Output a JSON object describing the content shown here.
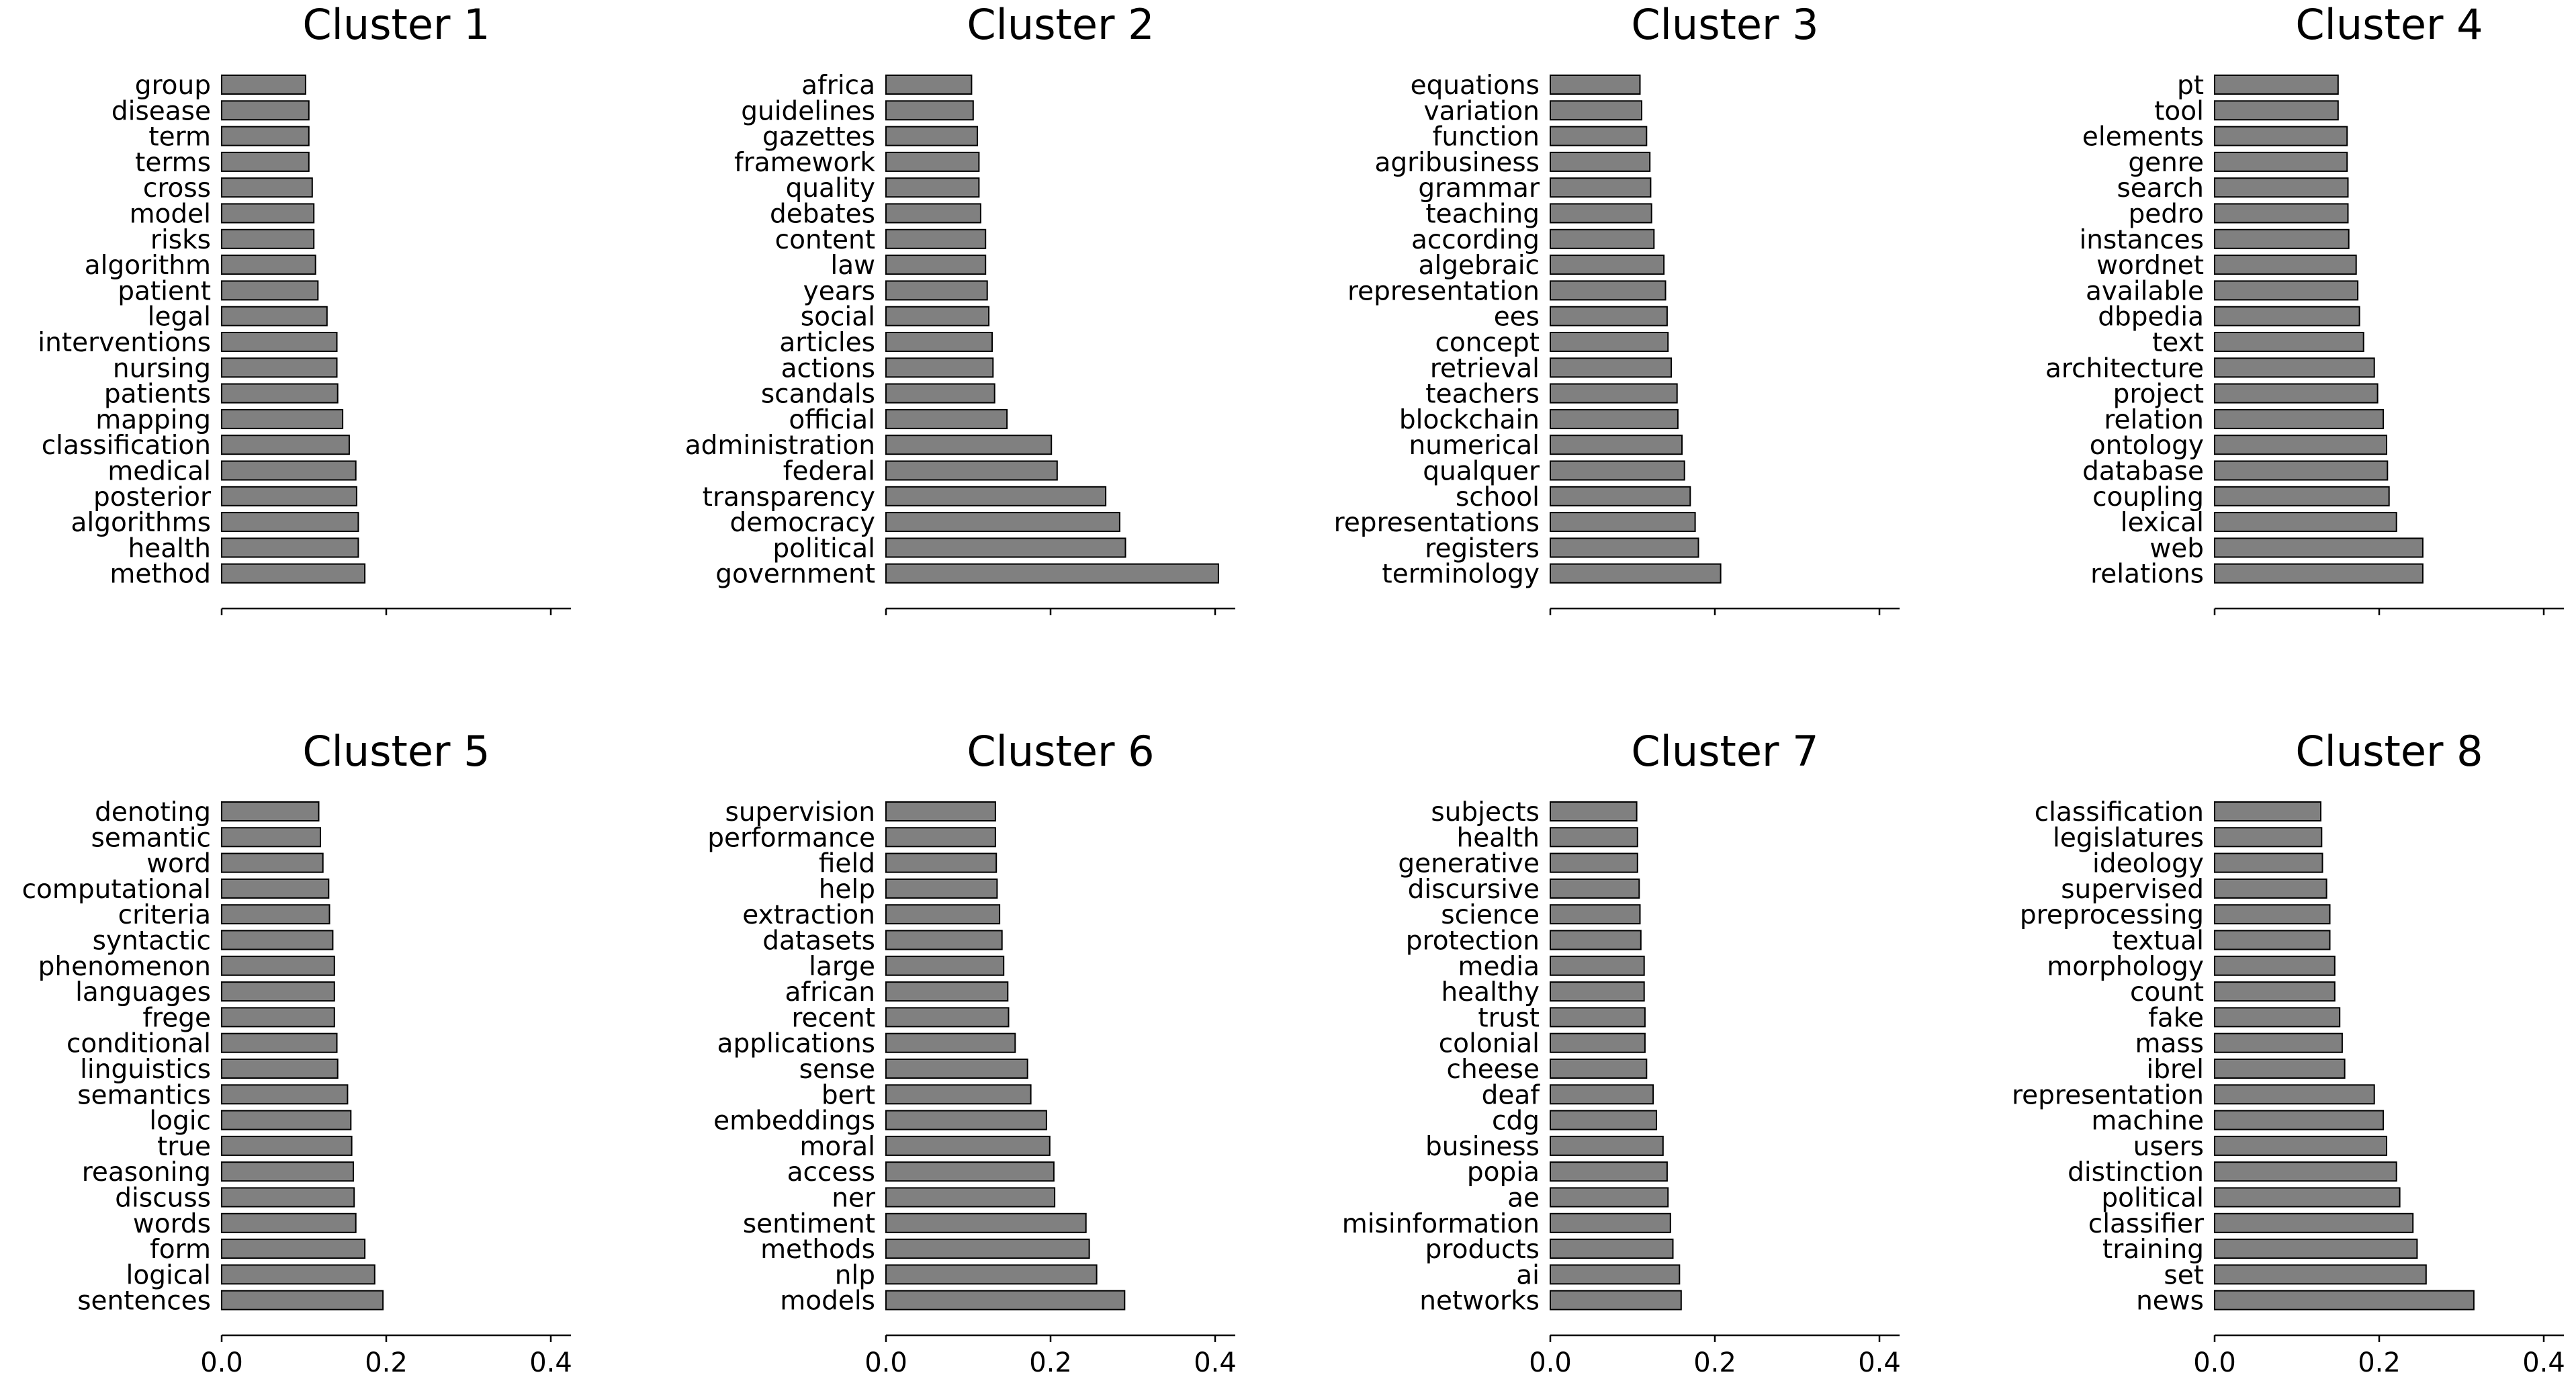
{
  "chart_data": [
    {
      "type": "bar",
      "orientation": "horizontal",
      "title": "Cluster 1",
      "categories": [
        "group",
        "disease",
        "term",
        "terms",
        "cross",
        "model",
        "risks",
        "algorithm",
        "patient",
        "legal",
        "interventions",
        "nursing",
        "patients",
        "mapping",
        "classification",
        "medical",
        "posterior",
        "algorithms",
        "health",
        "method"
      ],
      "values": [
        0.102,
        0.106,
        0.106,
        0.106,
        0.11,
        0.112,
        0.112,
        0.114,
        0.117,
        0.128,
        0.14,
        0.14,
        0.141,
        0.147,
        0.155,
        0.163,
        0.164,
        0.166,
        0.166,
        0.174
      ],
      "xlim": [
        0,
        0.42
      ],
      "xticks": [
        0.0,
        0.2,
        0.4
      ],
      "xtick_labels": [
        "",
        "",
        ""
      ],
      "bar_color": "#808080",
      "bar_edge_color": "#000000"
    },
    {
      "type": "bar",
      "orientation": "horizontal",
      "title": "Cluster 2",
      "categories": [
        "africa",
        "guidelines",
        "gazettes",
        "framework",
        "quality",
        "debates",
        "content",
        "law",
        "years",
        "social",
        "articles",
        "actions",
        "scandals",
        "official",
        "administration",
        "federal",
        "transparency",
        "democracy",
        "political",
        "government"
      ],
      "values": [
        0.104,
        0.106,
        0.111,
        0.113,
        0.113,
        0.115,
        0.121,
        0.121,
        0.123,
        0.125,
        0.129,
        0.13,
        0.132,
        0.147,
        0.201,
        0.208,
        0.267,
        0.284,
        0.291,
        0.404
      ],
      "xlim": [
        0,
        0.42
      ],
      "xticks": [
        0.0,
        0.2,
        0.4
      ],
      "xtick_labels": [
        "",
        "",
        ""
      ],
      "bar_color": "#808080",
      "bar_edge_color": "#000000"
    },
    {
      "type": "bar",
      "orientation": "horizontal",
      "title": "Cluster 3",
      "categories": [
        "equations",
        "variation",
        "function",
        "agribusiness",
        "grammar",
        "teaching",
        "according",
        "algebraic",
        "representation",
        "ees",
        "concept",
        "retrieval",
        "teachers",
        "blockchain",
        "numerical",
        "qualquer",
        "school",
        "representations",
        "registers",
        "terminology"
      ],
      "values": [
        0.109,
        0.111,
        0.117,
        0.121,
        0.122,
        0.123,
        0.126,
        0.138,
        0.14,
        0.142,
        0.143,
        0.147,
        0.154,
        0.155,
        0.16,
        0.163,
        0.17,
        0.176,
        0.18,
        0.207
      ],
      "xlim": [
        0,
        0.42
      ],
      "xticks": [
        0.0,
        0.2,
        0.4
      ],
      "xtick_labels": [
        "",
        "",
        ""
      ],
      "bar_color": "#808080",
      "bar_edge_color": "#000000"
    },
    {
      "type": "bar",
      "orientation": "horizontal",
      "title": "Cluster 4",
      "categories": [
        "pt",
        "tool",
        "elements",
        "genre",
        "search",
        "pedro",
        "instances",
        "wordnet",
        "available",
        "dbpedia",
        "text",
        "architecture",
        "project",
        "relation",
        "ontology",
        "database",
        "coupling",
        "lexical",
        "web",
        "relations"
      ],
      "values": [
        0.15,
        0.15,
        0.161,
        0.161,
        0.162,
        0.162,
        0.163,
        0.172,
        0.174,
        0.176,
        0.181,
        0.194,
        0.198,
        0.205,
        0.209,
        0.21,
        0.212,
        0.221,
        0.253,
        0.253
      ],
      "xlim": [
        0,
        0.42
      ],
      "xticks": [
        0.0,
        0.2,
        0.4
      ],
      "xtick_labels": [
        "",
        "",
        ""
      ],
      "bar_color": "#808080",
      "bar_edge_color": "#000000"
    },
    {
      "type": "bar",
      "orientation": "horizontal",
      "title": "Cluster 5",
      "categories": [
        "denoting",
        "semantic",
        "word",
        "computational",
        "criteria",
        "syntactic",
        "phenomenon",
        "languages",
        "frege",
        "conditional",
        "linguistics",
        "semantics",
        "logic",
        "true",
        "reasoning",
        "discuss",
        "words",
        "form",
        "logical",
        "sentences"
      ],
      "values": [
        0.118,
        0.12,
        0.123,
        0.13,
        0.131,
        0.135,
        0.137,
        0.137,
        0.137,
        0.14,
        0.141,
        0.153,
        0.157,
        0.158,
        0.16,
        0.161,
        0.163,
        0.174,
        0.186,
        0.196
      ],
      "xlim": [
        0,
        0.42
      ],
      "xticks": [
        0.0,
        0.2,
        0.4
      ],
      "xtick_labels": [
        "0.0",
        "0.2",
        "0.4"
      ],
      "bar_color": "#808080",
      "bar_edge_color": "#000000"
    },
    {
      "type": "bar",
      "orientation": "horizontal",
      "title": "Cluster 6",
      "categories": [
        "supervision",
        "performance",
        "field",
        "help",
        "extraction",
        "datasets",
        "large",
        "african",
        "recent",
        "applications",
        "sense",
        "bert",
        "embeddings",
        "moral",
        "access",
        "ner",
        "sentiment",
        "methods",
        "nlp",
        "models"
      ],
      "values": [
        0.133,
        0.133,
        0.134,
        0.135,
        0.138,
        0.141,
        0.143,
        0.148,
        0.149,
        0.157,
        0.172,
        0.176,
        0.195,
        0.199,
        0.204,
        0.205,
        0.243,
        0.247,
        0.256,
        0.29
      ],
      "xlim": [
        0,
        0.42
      ],
      "xticks": [
        0.0,
        0.2,
        0.4
      ],
      "xtick_labels": [
        "0.0",
        "0.2",
        "0.4"
      ],
      "bar_color": "#808080",
      "bar_edge_color": "#000000"
    },
    {
      "type": "bar",
      "orientation": "horizontal",
      "title": "Cluster 7",
      "categories": [
        "subjects",
        "health",
        "generative",
        "discursive",
        "science",
        "protection",
        "media",
        "healthy",
        "trust",
        "colonial",
        "cheese",
        "deaf",
        "cdg",
        "business",
        "popia",
        "ae",
        "misinformation",
        "products",
        "ai",
        "networks"
      ],
      "values": [
        0.105,
        0.106,
        0.106,
        0.108,
        0.109,
        0.11,
        0.114,
        0.114,
        0.115,
        0.115,
        0.117,
        0.125,
        0.129,
        0.137,
        0.142,
        0.143,
        0.146,
        0.149,
        0.157,
        0.159
      ],
      "xlim": [
        0,
        0.42
      ],
      "xticks": [
        0.0,
        0.2,
        0.4
      ],
      "xtick_labels": [
        "0.0",
        "0.2",
        "0.4"
      ],
      "bar_color": "#808080",
      "bar_edge_color": "#000000"
    },
    {
      "type": "bar",
      "orientation": "horizontal",
      "title": "Cluster 8",
      "categories": [
        "classification",
        "legislatures",
        "ideology",
        "supervised",
        "preprocessing",
        "textual",
        "morphology",
        "count",
        "fake",
        "mass",
        "ibrel",
        "representation",
        "machine",
        "users",
        "distinction",
        "political",
        "classifier",
        "training",
        "set",
        "news"
      ],
      "values": [
        0.129,
        0.13,
        0.131,
        0.136,
        0.14,
        0.14,
        0.146,
        0.146,
        0.152,
        0.155,
        0.158,
        0.194,
        0.205,
        0.209,
        0.221,
        0.225,
        0.241,
        0.246,
        0.257,
        0.315
      ],
      "xlim": [
        0,
        0.42
      ],
      "xticks": [
        0.0,
        0.2,
        0.4
      ],
      "xtick_labels": [
        "0.0",
        "0.2",
        "0.4"
      ],
      "bar_color": "#808080",
      "bar_edge_color": "#000000"
    }
  ]
}
